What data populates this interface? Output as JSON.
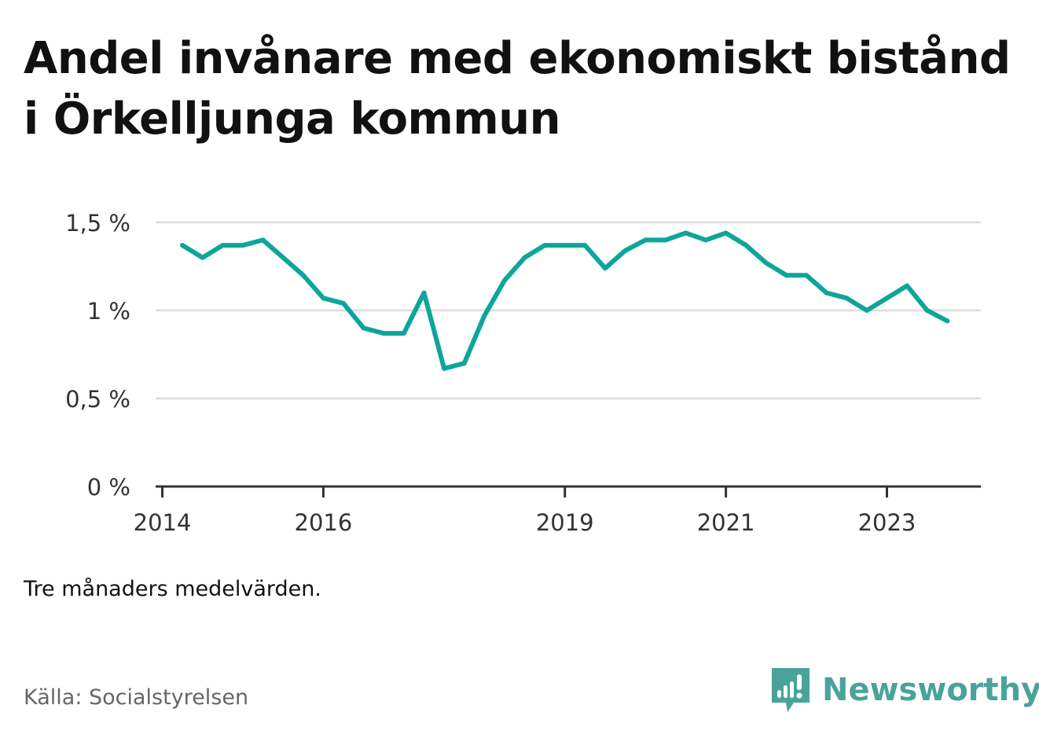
{
  "title": "Andel invånare med ekonomiskt bistånd i Örkelljunga kommun",
  "note": "Tre månaders medelvärden.",
  "source": "Källa: Socialstyrelsen",
  "brand": {
    "name": "Newsworthy",
    "icon": "newsworthy-logo-icon",
    "color": "#4aa39a"
  },
  "colors": {
    "line": "#0ea59b",
    "grid": "#dddddd",
    "axis": "#333333"
  },
  "chart_data": {
    "type": "line",
    "title": "Andel invånare med ekonomiskt bistånd i Örkelljunga kommun",
    "xlabel": "",
    "ylabel": "",
    "ylim": [
      0,
      1.5
    ],
    "xlim": [
      "2013-12",
      "2024-03"
    ],
    "grid": true,
    "legend": "none",
    "y_ticks": [
      {
        "value": 0,
        "label": "0 %"
      },
      {
        "value": 0.5,
        "label": "0,5 %"
      },
      {
        "value": 1,
        "label": "1 %"
      },
      {
        "value": 1.5,
        "label": "1,5 %"
      }
    ],
    "x_ticks": [
      {
        "value": "2014-01",
        "label": "2014"
      },
      {
        "value": "2016-01",
        "label": "2016"
      },
      {
        "value": "2019-01",
        "label": "2019"
      },
      {
        "value": "2021-01",
        "label": "2021"
      },
      {
        "value": "2023-01",
        "label": "2023"
      }
    ],
    "series": [
      {
        "x": [
          "2014-04",
          "2014-07",
          "2014-10",
          "2015-01",
          "2015-04",
          "2015-07",
          "2015-10",
          "2016-01",
          "2016-04",
          "2016-07",
          "2016-10",
          "2017-01",
          "2017-04",
          "2017-07",
          "2017-10",
          "2018-01",
          "2018-04",
          "2018-07",
          "2018-10",
          "2019-01",
          "2019-04",
          "2019-07",
          "2019-10",
          "2020-01",
          "2020-04",
          "2020-07",
          "2020-10",
          "2021-01",
          "2021-04",
          "2021-07",
          "2021-10",
          "2022-01",
          "2022-04",
          "2022-07",
          "2022-10",
          "2023-01",
          "2023-04",
          "2023-07",
          "2023-10"
        ],
        "values": [
          1.37,
          1.3,
          1.37,
          1.37,
          1.4,
          1.3,
          1.2,
          1.07,
          1.04,
          0.9,
          0.87,
          0.87,
          1.1,
          0.67,
          0.7,
          0.97,
          1.17,
          1.3,
          1.37,
          1.37,
          1.37,
          1.24,
          1.34,
          1.4,
          1.4,
          1.44,
          1.4,
          1.44,
          1.37,
          1.27,
          1.2,
          1.2,
          1.1,
          1.07,
          1.0,
          1.07,
          1.14,
          1.0,
          0.94
        ]
      }
    ]
  }
}
